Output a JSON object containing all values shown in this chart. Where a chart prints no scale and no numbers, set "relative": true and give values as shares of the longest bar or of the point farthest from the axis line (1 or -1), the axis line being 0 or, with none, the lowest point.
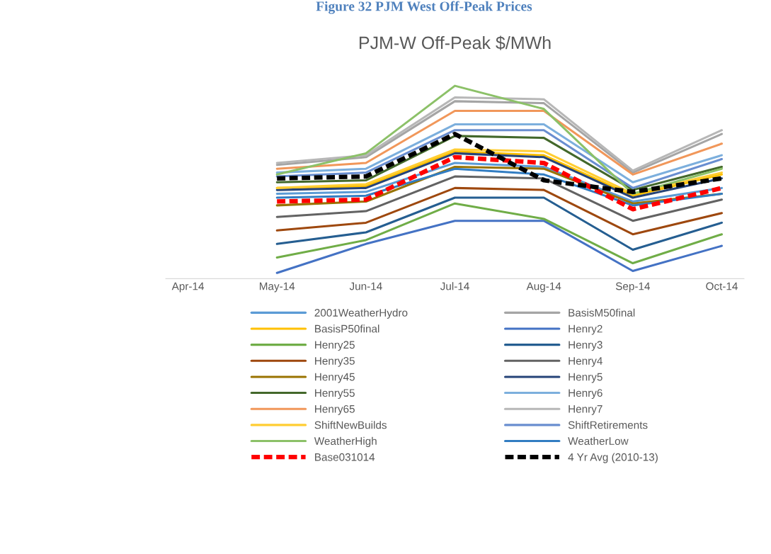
{
  "chart_data": {
    "type": "line",
    "title": "PJM-W Off-Peak $/MWh",
    "annotations": [
      "Figure 32 PJM West Off-Peak Prices"
    ],
    "relative": true,
    "legend": "bottom",
    "marker": "none",
    "categories": [
      "Apr-14",
      "May-14",
      "Jun-14",
      "Jul-14",
      "Aug-14",
      "Sep-14",
      "Oct-14"
    ],
    "series": [
      {
        "name": "2001WeatherHydro",
        "color": "#5b9bd5",
        "values": [
          null,
          0.44,
          0.45,
          0.6,
          0.58,
          0.4,
          0.47
        ]
      },
      {
        "name": "BasisM50final",
        "color": "#a5a5a5",
        "values": [
          null,
          0.59,
          0.63,
          0.92,
          0.91,
          0.55,
          0.75
        ]
      },
      {
        "name": "BasisP50final",
        "color": "#ffc000",
        "values": [
          null,
          0.47,
          0.48,
          0.66,
          0.64,
          0.43,
          0.54
        ]
      },
      {
        "name": "Henry2",
        "color": "#4472c4",
        "values": [
          null,
          0.03,
          0.18,
          0.3,
          0.3,
          0.04,
          0.17
        ]
      },
      {
        "name": "Henry25",
        "color": "#70ad47",
        "values": [
          null,
          0.11,
          0.2,
          0.39,
          0.31,
          0.08,
          0.23
        ]
      },
      {
        "name": "Henry3",
        "color": "#255e91",
        "values": [
          null,
          0.18,
          0.24,
          0.42,
          0.42,
          0.15,
          0.29
        ]
      },
      {
        "name": "Henry35",
        "color": "#9e480e",
        "values": [
          null,
          0.25,
          0.29,
          0.47,
          0.46,
          0.23,
          0.34
        ]
      },
      {
        "name": "Henry4",
        "color": "#636363",
        "values": [
          null,
          0.32,
          0.35,
          0.53,
          0.52,
          0.3,
          0.41
        ]
      },
      {
        "name": "Henry45",
        "color": "#997300",
        "values": [
          null,
          0.38,
          0.4,
          0.58,
          0.57,
          0.39,
          0.44
        ]
      },
      {
        "name": "Henry5",
        "color": "#264478",
        "values": [
          null,
          0.46,
          0.47,
          0.65,
          0.63,
          0.42,
          0.52
        ]
      },
      {
        "name": "Henry55",
        "color": "#43682b",
        "values": [
          null,
          0.5,
          0.51,
          0.74,
          0.73,
          0.46,
          0.58
        ]
      },
      {
        "name": "Henry6",
        "color": "#7cafdd",
        "values": [
          null,
          0.55,
          0.57,
          0.8,
          0.8,
          0.5,
          0.64
        ]
      },
      {
        "name": "Henry65",
        "color": "#f1975a",
        "values": [
          null,
          0.57,
          0.6,
          0.87,
          0.87,
          0.54,
          0.7
        ]
      },
      {
        "name": "Henry7",
        "color": "#b7b7b7",
        "values": [
          null,
          0.6,
          0.64,
          0.94,
          0.93,
          0.56,
          0.77
        ]
      },
      {
        "name": "ShiftNewBuilds",
        "color": "#ffcd33",
        "values": [
          null,
          0.47,
          0.49,
          0.67,
          0.66,
          0.44,
          0.55
        ]
      },
      {
        "name": "ShiftRetirements",
        "color": "#698ed0",
        "values": [
          null,
          0.53,
          0.55,
          0.77,
          0.77,
          0.47,
          0.62
        ]
      },
      {
        "name": "WeatherHigh",
        "color": "#8cc168",
        "values": [
          null,
          0.54,
          0.65,
          1.0,
          0.88,
          0.44,
          0.57
        ]
      },
      {
        "name": "WeatherLow",
        "color": "#327dc2",
        "values": [
          null,
          0.42,
          0.43,
          0.57,
          0.54,
          0.38,
          0.44
        ]
      },
      {
        "name": "Base031014",
        "color": "#ff0000",
        "line_style": "dashed",
        "values": [
          null,
          0.4,
          0.41,
          0.63,
          0.6,
          0.36,
          0.47
        ]
      },
      {
        "name": "4 Yr Avg (2010-13)",
        "color": "#000000",
        "line_style": "dashed",
        "values": [
          null,
          0.52,
          0.53,
          0.75,
          0.51,
          0.45,
          0.52
        ]
      }
    ]
  }
}
